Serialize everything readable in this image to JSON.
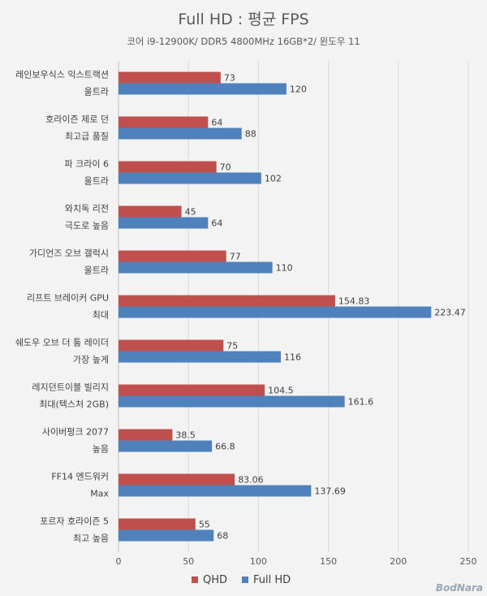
{
  "chart_data": {
    "type": "bar",
    "orientation": "horizontal",
    "title": "Full HD : 평균 FPS",
    "subtitle": "코어 i9-12900K/ DDR5 4800MHz 16GB*2/ 윈도우 11",
    "categories": [
      [
        "레인보우식스 익스트랙션",
        "울트라"
      ],
      [
        "호라이즌 제로 던",
        "최고급 품질"
      ],
      [
        "파 크라이 6",
        "울트라"
      ],
      [
        "와치독 리전",
        "극도로 높음"
      ],
      [
        "가디언즈 오브 갤럭시",
        "울트라"
      ],
      [
        "리프트 브레이커 GPU",
        "최대"
      ],
      [
        "쉐도우 오브 더 툼 레이더",
        "가장 높게"
      ],
      [
        "레지던트이블 빌리지",
        "최대(텍스처 2GB)"
      ],
      [
        "사이버펑크 2077",
        "높음"
      ],
      [
        "FF14 엔드워커",
        "Max"
      ],
      [
        "포르자 호라이즌 5",
        "최고 높음"
      ]
    ],
    "series": [
      {
        "name": "QHD",
        "color": "#c0504d",
        "values": [
          73,
          64,
          70,
          45,
          77,
          154.83,
          75,
          104.5,
          38.5,
          83.06,
          55
        ],
        "labels": [
          "73",
          "64",
          "70",
          "45",
          "77",
          "154.83",
          "75",
          "104.5",
          "38.5",
          "83.06",
          "55"
        ]
      },
      {
        "name": "Full HD",
        "color": "#4f81bd",
        "values": [
          120,
          88,
          102,
          64,
          110,
          223.47,
          116,
          161.6,
          66.8,
          137.69,
          68
        ],
        "labels": [
          "120",
          "88",
          "102",
          "64",
          "110",
          "223.47",
          "116",
          "161.6",
          "66.8",
          "137.69",
          "68"
        ]
      }
    ],
    "xlim": [
      0,
      250
    ],
    "x_ticks": [
      "0",
      "50",
      "100",
      "150",
      "200",
      "250"
    ],
    "grid": "vertical",
    "legend_position": "bottom"
  },
  "watermark": "BodNara"
}
